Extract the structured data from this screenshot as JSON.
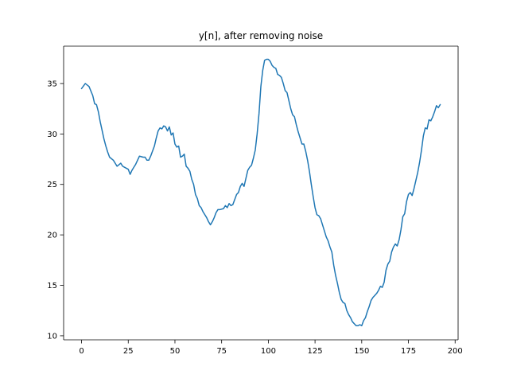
{
  "chart_data": {
    "type": "line",
    "title": "y[n], after removing noise",
    "xlabel": "",
    "ylabel": "",
    "xlim": [
      -9.6,
      201.6
    ],
    "ylim": [
      9.6,
      38.7
    ],
    "grid": false,
    "x_ticks": [
      0,
      25,
      50,
      75,
      100,
      125,
      150,
      175,
      200
    ],
    "x_tick_labels": [
      "0",
      "25",
      "50",
      "75",
      "100",
      "125",
      "150",
      "175",
      "200"
    ],
    "y_ticks": [
      10,
      15,
      20,
      25,
      30,
      35
    ],
    "y_tick_labels": [
      "10",
      "15",
      "20",
      "25",
      "30",
      "35"
    ],
    "series": [
      {
        "color": "#1f77b4",
        "points": [
          [
            0,
            34.5
          ],
          [
            2,
            35.0
          ],
          [
            4,
            34.7
          ],
          [
            6,
            33.8
          ],
          [
            7,
            33.0
          ],
          [
            8,
            32.9
          ],
          [
            9,
            32.2
          ],
          [
            10,
            31.2
          ],
          [
            12,
            29.5
          ],
          [
            13,
            28.8
          ],
          [
            14,
            28.2
          ],
          [
            15,
            27.7
          ],
          [
            17,
            27.4
          ],
          [
            19,
            26.8
          ],
          [
            21,
            27.1
          ],
          [
            22,
            26.8
          ],
          [
            23,
            26.7
          ],
          [
            25,
            26.5
          ],
          [
            26,
            26.0
          ],
          [
            27,
            26.4
          ],
          [
            28,
            26.7
          ],
          [
            29,
            27.0
          ],
          [
            31,
            27.8
          ],
          [
            33,
            27.7
          ],
          [
            34,
            27.7
          ],
          [
            35,
            27.4
          ],
          [
            36,
            27.4
          ],
          [
            37,
            27.8
          ],
          [
            39,
            28.8
          ],
          [
            40,
            29.6
          ],
          [
            41,
            30.3
          ],
          [
            42,
            30.6
          ],
          [
            43,
            30.5
          ],
          [
            44,
            30.8
          ],
          [
            45,
            30.7
          ],
          [
            46,
            30.3
          ],
          [
            47,
            30.7
          ],
          [
            48,
            29.9
          ],
          [
            49,
            30.1
          ],
          [
            50,
            29.0
          ],
          [
            51,
            28.7
          ],
          [
            52,
            28.8
          ],
          [
            53,
            27.7
          ],
          [
            54,
            27.8
          ],
          [
            55,
            28.0
          ],
          [
            56,
            26.8
          ],
          [
            57,
            26.6
          ],
          [
            58,
            26.3
          ],
          [
            59,
            25.5
          ],
          [
            60,
            25.0
          ],
          [
            61,
            24.0
          ],
          [
            62,
            23.6
          ],
          [
            63,
            22.9
          ],
          [
            64,
            22.7
          ],
          [
            65,
            22.3
          ],
          [
            66,
            22.0
          ],
          [
            67,
            21.7
          ],
          [
            68,
            21.3
          ],
          [
            69,
            21.0
          ],
          [
            70,
            21.3
          ],
          [
            71,
            21.7
          ],
          [
            72,
            22.2
          ],
          [
            73,
            22.5
          ],
          [
            74,
            22.5
          ],
          [
            76,
            22.6
          ],
          [
            77,
            22.9
          ],
          [
            78,
            22.7
          ],
          [
            79,
            23.1
          ],
          [
            80,
            22.9
          ],
          [
            81,
            23.0
          ],
          [
            82,
            23.5
          ],
          [
            83,
            24.0
          ],
          [
            84,
            24.2
          ],
          [
            85,
            24.8
          ],
          [
            86,
            25.1
          ],
          [
            87,
            24.8
          ],
          [
            88,
            25.6
          ],
          [
            89,
            26.4
          ],
          [
            90,
            26.7
          ],
          [
            91,
            26.9
          ],
          [
            92,
            27.6
          ],
          [
            93,
            28.4
          ],
          [
            94,
            30.0
          ],
          [
            95,
            32.0
          ],
          [
            96,
            34.7
          ],
          [
            97,
            36.3
          ],
          [
            98,
            37.3
          ],
          [
            99,
            37.4
          ],
          [
            100,
            37.4
          ],
          [
            101,
            37.2
          ],
          [
            102,
            36.8
          ],
          [
            103,
            36.6
          ],
          [
            104,
            36.5
          ],
          [
            105,
            35.9
          ],
          [
            106,
            35.8
          ],
          [
            107,
            35.6
          ],
          [
            108,
            35.0
          ],
          [
            109,
            34.3
          ],
          [
            110,
            34.1
          ],
          [
            111,
            33.3
          ],
          [
            112,
            32.5
          ],
          [
            113,
            31.9
          ],
          [
            114,
            31.7
          ],
          [
            115,
            30.9
          ],
          [
            116,
            30.2
          ],
          [
            117,
            29.6
          ],
          [
            118,
            29.0
          ],
          [
            119,
            29.0
          ],
          [
            120,
            28.3
          ],
          [
            121,
            27.4
          ],
          [
            122,
            26.3
          ],
          [
            123,
            25.0
          ],
          [
            124,
            23.8
          ],
          [
            125,
            22.7
          ],
          [
            126,
            22.0
          ],
          [
            127,
            21.9
          ],
          [
            128,
            21.6
          ],
          [
            129,
            21.0
          ],
          [
            130,
            20.4
          ],
          [
            131,
            19.8
          ],
          [
            132,
            19.4
          ],
          [
            133,
            18.8
          ],
          [
            134,
            18.3
          ],
          [
            135,
            17.0
          ],
          [
            136,
            16.0
          ],
          [
            137,
            15.2
          ],
          [
            138,
            14.3
          ],
          [
            139,
            13.6
          ],
          [
            140,
            13.3
          ],
          [
            141,
            13.2
          ],
          [
            142,
            12.5
          ],
          [
            143,
            12.1
          ],
          [
            144,
            11.8
          ],
          [
            145,
            11.4
          ],
          [
            146,
            11.2
          ],
          [
            147,
            11.0
          ],
          [
            148,
            11.0
          ],
          [
            149,
            11.1
          ],
          [
            150,
            11.0
          ],
          [
            151,
            11.5
          ],
          [
            152,
            11.8
          ],
          [
            153,
            12.4
          ],
          [
            154,
            12.9
          ],
          [
            155,
            13.5
          ],
          [
            156,
            13.8
          ],
          [
            157,
            14.0
          ],
          [
            158,
            14.2
          ],
          [
            159,
            14.5
          ],
          [
            160,
            14.9
          ],
          [
            161,
            14.8
          ],
          [
            162,
            15.3
          ],
          [
            163,
            16.5
          ],
          [
            164,
            17.1
          ],
          [
            165,
            17.4
          ],
          [
            166,
            18.3
          ],
          [
            167,
            18.8
          ],
          [
            168,
            19.1
          ],
          [
            169,
            18.9
          ],
          [
            170,
            19.5
          ],
          [
            171,
            20.5
          ],
          [
            172,
            21.8
          ],
          [
            173,
            22.1
          ],
          [
            174,
            23.3
          ],
          [
            175,
            24.0
          ],
          [
            176,
            24.2
          ],
          [
            177,
            23.9
          ],
          [
            178,
            24.6
          ],
          [
            179,
            25.4
          ],
          [
            180,
            26.2
          ],
          [
            181,
            27.2
          ],
          [
            182,
            28.4
          ],
          [
            183,
            29.8
          ],
          [
            184,
            30.6
          ],
          [
            185,
            30.5
          ],
          [
            186,
            31.4
          ],
          [
            187,
            31.3
          ],
          [
            188,
            31.7
          ],
          [
            189,
            32.2
          ],
          [
            190,
            32.8
          ],
          [
            191,
            32.6
          ],
          [
            192,
            32.9
          ]
        ]
      }
    ]
  }
}
